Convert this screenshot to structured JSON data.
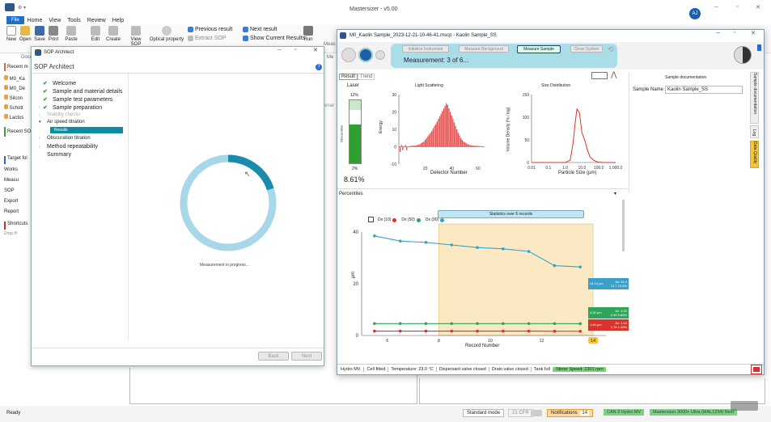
{
  "app": {
    "title": "Mastersizer - v5.00",
    "avatar": "AJ",
    "menu": [
      "File",
      "Home",
      "View",
      "Tools",
      "Review",
      "Help"
    ],
    "ribbon_buttons": [
      "New",
      "Open",
      "Save",
      "Print",
      "Paste",
      "Edit",
      "Create",
      "View SOP",
      "Optical property",
      "Run"
    ],
    "ribbon_small": [
      "Previous result",
      "Extract SOP",
      "Next result",
      "Show Current Results"
    ],
    "ribbon_partial": [
      "Docu",
      "Meas",
      "Me"
    ]
  },
  "left_nav": {
    "recent_header": "Recent m",
    "recent_items": [
      "M0_Ka",
      "M0_De",
      "Silcon",
      "Schott",
      "Lactos"
    ],
    "recent_sop": "Recent SO",
    "target_header": "Target fol",
    "target_items": [
      "Works",
      "Measu",
      "SOP",
      "Export",
      "Report"
    ],
    "shortcuts": "Shortcuts",
    "drop_hint": "Drop fil"
  },
  "sop_window": {
    "title": "SOP Architect",
    "heading": "SOP Architect",
    "steps": [
      {
        "label": "Welcome",
        "state": "done"
      },
      {
        "label": "Sample and material details",
        "state": "done"
      },
      {
        "label": "Sample test parameters",
        "state": "done"
      },
      {
        "label": "Sample preparation",
        "state": "done"
      },
      {
        "label": "Stability checks",
        "state": "disabled"
      },
      {
        "label": "Air speed titration",
        "state": "expanded"
      },
      {
        "label": "Results",
        "state": "selected"
      },
      {
        "label": "Obscuration titration",
        "state": "collapsed"
      },
      {
        "label": "Method repeatability",
        "state": "collapsed"
      },
      {
        "label": "Summary",
        "state": "plain"
      }
    ],
    "progress_fraction": 0.2,
    "progress_text": "Measurement in progress...",
    "back": "Back",
    "next": "Next"
  },
  "meas_window": {
    "title": "M0_Kaolin Sample_2023-12-21-10-46-41.mscp - Kaolin Sample_SS",
    "workflow": [
      "Initialize Instrument",
      "Measure Background",
      "Measure Sample",
      "Clean System"
    ],
    "measurement": "Measurement: 3 of 6...",
    "tabs": [
      "Result",
      "Trend"
    ],
    "laser": {
      "title": "Laser",
      "top_label": "12%",
      "bottom_label": "2%",
      "value": "8.61%",
      "side": "Obscuration",
      "level": 0.61
    },
    "scatter": {
      "title": "Light Scattering",
      "xlabel": "Detector Number",
      "ylabel": "Energy",
      "y_ticks": [
        "30",
        "20",
        "10",
        "0",
        "-10"
      ],
      "x_ticks": [
        "20",
        "40",
        "60"
      ]
    },
    "size": {
      "title": "Size Distribution",
      "xlabel": "Particle Size (µm)",
      "ylabel": "Volume Density (% / log)",
      "y_ticks": [
        "150",
        "100",
        "50",
        "0"
      ],
      "x_ticks": [
        "0.01",
        "0.1",
        "1.0",
        "10.0",
        "100.0",
        "1,000.0"
      ]
    },
    "doc": {
      "title": "Sample documentation",
      "field_label": "Sample Name",
      "field_value": "Kaolin Sample_SS"
    },
    "vtabs": [
      "Sample documentation",
      "Log",
      "Data Quality"
    ],
    "percentiles": {
      "title": "Percentiles",
      "stats": "Statistics over 6 records",
      "legend": [
        "Dx (10)",
        "Dx (50)",
        "Dx (90)"
      ],
      "ylabel": "µm",
      "xlabel": "Record Number",
      "y_ticks": [
        "40",
        "20",
        "0"
      ],
      "x_ticks": [
        "6",
        "8",
        "10",
        "12",
        "14"
      ],
      "current": "14",
      "tag_d90": "44.14 µm",
      "tag_d50": "4.52 µm",
      "tag_d10": "1.64 µm",
      "tag_d90_stats": [
        "Av: 44.0",
        "21.7 13.5%"
      ],
      "tag_d50_stats": [
        "Av: 4.52",
        "4.49 0.66%"
      ],
      "tag_d10_stats": [
        "Av: 1.64",
        "1.78 1.45%"
      ]
    },
    "status_bar": [
      "Hydro MV",
      "Cell fitted",
      "Temperature: 23.0 °C",
      "Dispersant valve closed",
      "Drain valve closed",
      "Tank full",
      "Stirrer Speed: 2301 rpm"
    ]
  },
  "statusbar": {
    "left": "Ready",
    "mode": "Standard mode",
    "cfr": "21 CFR",
    "notifications": "Notifications",
    "notif_count": "14",
    "can": "CAN 3 Hydro MV",
    "instrument": "Mastersizer 3000+ Ultra (MAL1234) Next"
  },
  "chart_data": [
    {
      "type": "bar",
      "title": "Light Scattering",
      "xlabel": "Detector Number",
      "ylabel": "Energy",
      "xlim": [
        0,
        65
      ],
      "ylim": [
        -10,
        30
      ],
      "x": [
        1,
        2,
        3,
        4,
        5,
        6,
        7,
        8,
        9,
        10,
        11,
        12,
        13,
        14,
        15,
        16,
        17,
        18,
        19,
        20,
        21,
        22,
        23,
        24,
        25,
        26,
        27,
        28,
        29,
        30,
        31,
        32,
        33,
        34,
        35,
        36,
        37,
        38,
        39,
        40,
        41,
        42,
        43,
        44,
        45,
        46,
        47,
        48,
        49,
        50,
        51,
        52,
        53,
        54,
        55,
        56,
        57,
        58,
        59,
        60,
        61,
        62,
        63
      ],
      "values": [
        -3,
        1,
        -2,
        0,
        1,
        -2,
        0,
        0.3,
        0.5,
        0.5,
        0.7,
        0.6,
        0.7,
        1,
        1.2,
        1.5,
        2,
        2.5,
        3,
        4,
        5,
        6,
        7,
        8,
        9,
        10.5,
        12,
        13,
        14.5,
        16,
        17.5,
        19,
        20.5,
        22,
        23.5,
        25,
        24,
        22,
        20,
        18,
        16,
        14,
        12,
        10,
        8,
        6.5,
        5,
        4,
        3,
        2.5,
        2,
        1.5,
        1.2,
        1,
        0.8,
        0.7,
        0.6,
        0.5,
        0.5,
        0.4,
        0.4,
        0.3,
        0.3
      ]
    },
    {
      "type": "line",
      "title": "Size Distribution",
      "xlabel": "Particle Size (µm)",
      "ylabel": "Volume Density (% / log)",
      "x_scale": "log",
      "xlim": [
        0.01,
        1000
      ],
      "ylim": [
        0,
        150
      ],
      "x": [
        0.01,
        0.1,
        0.5,
        1,
        2,
        3,
        4,
        5,
        7,
        10,
        15,
        20,
        30,
        50,
        70,
        100,
        200,
        1000
      ],
      "values": [
        0,
        0,
        0,
        0,
        5,
        45,
        90,
        118,
        110,
        65,
        48,
        30,
        12,
        5,
        2,
        1,
        0,
        0
      ]
    },
    {
      "type": "line",
      "title": "Percentiles",
      "xlabel": "Record Number",
      "ylabel": "µm",
      "xlim": [
        5,
        14.5
      ],
      "ylim": [
        0,
        40
      ],
      "x": [
        5.5,
        6.5,
        7.5,
        8.5,
        9.5,
        10.5,
        11.5,
        12.5,
        13.5
      ],
      "series": [
        {
          "name": "Dx (90)",
          "color": "#3aa0c8",
          "values": [
            38.5,
            36.5,
            36,
            35,
            34,
            33.5,
            32.5,
            27,
            26.5
          ]
        },
        {
          "name": "Dx (50)",
          "color": "#2fa55a",
          "values": [
            4.6,
            4.6,
            4.6,
            4.6,
            4.6,
            4.6,
            4.6,
            4.6,
            4.55
          ]
        },
        {
          "name": "Dx (10)",
          "color": "#d9342b",
          "values": [
            1.7,
            1.7,
            1.7,
            1.7,
            1.7,
            1.7,
            1.7,
            1.65,
            1.64
          ]
        }
      ],
      "stats_range": [
        8,
        14
      ]
    }
  ],
  "colors": {
    "accent": "#0078d4",
    "teal": "#0e8ba0",
    "green": "#3a8a3a",
    "series_d90": "#3aa0c8",
    "series_d50": "#2fa55a",
    "series_d10": "#d9342b"
  }
}
